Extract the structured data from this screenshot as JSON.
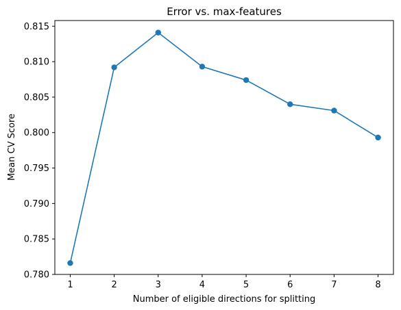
{
  "chart_data": {
    "type": "line",
    "title": "Error vs. max-features",
    "xlabel": "Number of eligible directions for splitting",
    "ylabel": "Mean CV Score",
    "x": [
      1,
      2,
      3,
      4,
      5,
      6,
      7,
      8
    ],
    "series": [
      {
        "values": [
          0.7816,
          0.8092,
          0.8141,
          0.8093,
          0.8074,
          0.804,
          0.8031,
          0.7993
        ],
        "color": "#1f77b4",
        "marker": "circle"
      }
    ],
    "xticks": [
      "1",
      "2",
      "3",
      "4",
      "5",
      "6",
      "7",
      "8"
    ],
    "yticks": [
      "0.780",
      "0.785",
      "0.790",
      "0.795",
      "0.800",
      "0.805",
      "0.810",
      "0.815"
    ],
    "xlim": [
      0.65,
      8.35
    ],
    "ylim": [
      0.78,
      0.8158
    ],
    "grid": false,
    "legend": "none"
  }
}
